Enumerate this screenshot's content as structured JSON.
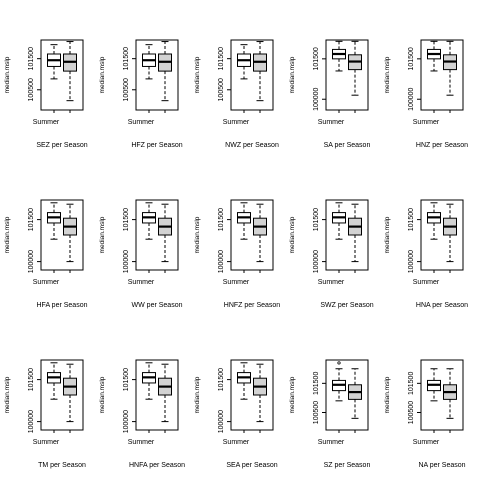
{
  "chart_data": [
    {
      "type": "boxplot",
      "title": "SEZ per Season",
      "xlabel": "SEZ per Season",
      "ylabel": "median.mslp",
      "categories": [
        "Summer",
        ""
      ],
      "yticks": [
        100500,
        101500
      ],
      "ylim": [
        99850,
        102100
      ],
      "boxes": [
        {
          "whisker_low": 100850,
          "q1": 101250,
          "median": 101450,
          "q3": 101650,
          "whisker_high": 101950,
          "outliers": []
        },
        {
          "whisker_low": 100150,
          "q1": 101100,
          "median": 101400,
          "q3": 101650,
          "whisker_high": 102050,
          "outliers": []
        }
      ]
    },
    {
      "type": "boxplot",
      "title": "HFZ per Season",
      "xlabel": "HFZ per Season",
      "ylabel": "median.mslp",
      "categories": [
        "Summer",
        ""
      ],
      "yticks": [
        100500,
        101500
      ],
      "ylim": [
        99850,
        102100
      ],
      "boxes": [
        {
          "whisker_low": 100850,
          "q1": 101250,
          "median": 101450,
          "q3": 101650,
          "whisker_high": 101950,
          "outliers": []
        },
        {
          "whisker_low": 100150,
          "q1": 101100,
          "median": 101400,
          "q3": 101650,
          "whisker_high": 102050,
          "outliers": []
        }
      ]
    },
    {
      "type": "boxplot",
      "title": "NWZ per Season",
      "xlabel": "NWZ per Season",
      "ylabel": "median.mslp",
      "categories": [
        "Summer",
        ""
      ],
      "yticks": [
        100500,
        101500
      ],
      "ylim": [
        99850,
        102100
      ],
      "boxes": [
        {
          "whisker_low": 100850,
          "q1": 101250,
          "median": 101450,
          "q3": 101650,
          "whisker_high": 101950,
          "outliers": []
        },
        {
          "whisker_low": 100150,
          "q1": 101100,
          "median": 101400,
          "q3": 101650,
          "whisker_high": 102050,
          "outliers": []
        }
      ]
    },
    {
      "type": "boxplot",
      "title": "SA per Season",
      "xlabel": "SA per Season",
      "ylabel": "median.mslp",
      "categories": [
        "Summer",
        ""
      ],
      "yticks": [
        100000,
        101500
      ],
      "ylim": [
        99600,
        102200
      ],
      "boxes": [
        {
          "whisker_low": 101050,
          "q1": 101500,
          "median": 101680,
          "q3": 101850,
          "whisker_high": 102150,
          "outliers": []
        },
        {
          "whisker_low": 100150,
          "q1": 101100,
          "median": 101400,
          "q3": 101650,
          "whisker_high": 102150,
          "outliers": []
        }
      ]
    },
    {
      "type": "boxplot",
      "title": "HNZ per Season",
      "xlabel": "HNZ per Season",
      "ylabel": "median.mslp",
      "categories": [
        "Summer",
        ""
      ],
      "yticks": [
        100000,
        101500
      ],
      "ylim": [
        99600,
        102200
      ],
      "boxes": [
        {
          "whisker_low": 101050,
          "q1": 101500,
          "median": 101680,
          "q3": 101850,
          "whisker_high": 102150,
          "outliers": []
        },
        {
          "whisker_low": 100150,
          "q1": 101100,
          "median": 101400,
          "q3": 101650,
          "whisker_high": 102150,
          "outliers": []
        }
      ]
    },
    {
      "type": "boxplot",
      "title": "HFA per Season",
      "xlabel": "HFA per Season",
      "ylabel": "median.mslp",
      "categories": [
        "Summer",
        ""
      ],
      "yticks": [
        100000,
        101500
      ],
      "ylim": [
        99700,
        102200
      ],
      "boxes": [
        {
          "whisker_low": 100800,
          "q1": 101380,
          "median": 101580,
          "q3": 101750,
          "whisker_high": 102100,
          "outliers": []
        },
        {
          "whisker_low": 100000,
          "q1": 100950,
          "median": 101250,
          "q3": 101550,
          "whisker_high": 102050,
          "outliers": []
        }
      ]
    },
    {
      "type": "boxplot",
      "title": "WW per Season",
      "xlabel": "WW per Season",
      "ylabel": "median.mslp",
      "categories": [
        "Summer",
        ""
      ],
      "yticks": [
        100000,
        101500
      ],
      "ylim": [
        99700,
        102200
      ],
      "boxes": [
        {
          "whisker_low": 100800,
          "q1": 101380,
          "median": 101580,
          "q3": 101750,
          "whisker_high": 102100,
          "outliers": []
        },
        {
          "whisker_low": 100000,
          "q1": 100950,
          "median": 101250,
          "q3": 101550,
          "whisker_high": 102050,
          "outliers": []
        }
      ]
    },
    {
      "type": "boxplot",
      "title": "HNFZ per Season",
      "xlabel": "HNFZ per Season",
      "ylabel": "median.mslp",
      "categories": [
        "Summer",
        ""
      ],
      "yticks": [
        100000,
        101500
      ],
      "ylim": [
        99700,
        102200
      ],
      "boxes": [
        {
          "whisker_low": 100800,
          "q1": 101380,
          "median": 101580,
          "q3": 101750,
          "whisker_high": 102100,
          "outliers": []
        },
        {
          "whisker_low": 100000,
          "q1": 100950,
          "median": 101250,
          "q3": 101550,
          "whisker_high": 102050,
          "outliers": []
        }
      ]
    },
    {
      "type": "boxplot",
      "title": "SWZ per Season",
      "xlabel": "SWZ per Season",
      "ylabel": "median.mslp",
      "categories": [
        "Summer",
        ""
      ],
      "yticks": [
        100000,
        101500
      ],
      "ylim": [
        99700,
        102200
      ],
      "boxes": [
        {
          "whisker_low": 100800,
          "q1": 101380,
          "median": 101580,
          "q3": 101750,
          "whisker_high": 102100,
          "outliers": []
        },
        {
          "whisker_low": 100000,
          "q1": 100950,
          "median": 101250,
          "q3": 101550,
          "whisker_high": 102050,
          "outliers": []
        }
      ]
    },
    {
      "type": "boxplot",
      "title": "HNA per Season",
      "xlabel": "HNA per Season",
      "ylabel": "median.mslp",
      "categories": [
        "Summer",
        ""
      ],
      "yticks": [
        100000,
        101500
      ],
      "ylim": [
        99700,
        102200
      ],
      "boxes": [
        {
          "whisker_low": 100800,
          "q1": 101380,
          "median": 101580,
          "q3": 101750,
          "whisker_high": 102100,
          "outliers": []
        },
        {
          "whisker_low": 100000,
          "q1": 100950,
          "median": 101250,
          "q3": 101550,
          "whisker_high": 102050,
          "outliers": []
        }
      ]
    },
    {
      "type": "boxplot",
      "title": "TM per Season",
      "xlabel": "TM per Season",
      "ylabel": "median.mslp",
      "categories": [
        "Summer",
        ""
      ],
      "yticks": [
        100000,
        101500
      ],
      "ylim": [
        99700,
        102200
      ],
      "boxes": [
        {
          "whisker_low": 100800,
          "q1": 101380,
          "median": 101580,
          "q3": 101750,
          "whisker_high": 102100,
          "outliers": []
        },
        {
          "whisker_low": 100000,
          "q1": 100950,
          "median": 101250,
          "q3": 101550,
          "whisker_high": 102050,
          "outliers": []
        }
      ]
    },
    {
      "type": "boxplot",
      "title": "HNFA per Season",
      "xlabel": "HNFA per Season",
      "ylabel": "median.mslp",
      "categories": [
        "Summer",
        ""
      ],
      "yticks": [
        100000,
        101500
      ],
      "ylim": [
        99700,
        102200
      ],
      "boxes": [
        {
          "whisker_low": 100800,
          "q1": 101380,
          "median": 101580,
          "q3": 101750,
          "whisker_high": 102100,
          "outliers": []
        },
        {
          "whisker_low": 100000,
          "q1": 100950,
          "median": 101250,
          "q3": 101550,
          "whisker_high": 102050,
          "outliers": []
        }
      ]
    },
    {
      "type": "boxplot",
      "title": "SEA per Season",
      "xlabel": "SEA per Season",
      "ylabel": "median.mslp",
      "categories": [
        "Summer",
        ""
      ],
      "yticks": [
        100000,
        101500
      ],
      "ylim": [
        99700,
        102200
      ],
      "boxes": [
        {
          "whisker_low": 100800,
          "q1": 101380,
          "median": 101580,
          "q3": 101750,
          "whisker_high": 102100,
          "outliers": []
        },
        {
          "whisker_low": 100000,
          "q1": 100950,
          "median": 101250,
          "q3": 101550,
          "whisker_high": 102050,
          "outliers": []
        }
      ]
    },
    {
      "type": "boxplot",
      "title": "SZ per Season",
      "xlabel": "SZ per Season",
      "ylabel": "median.mslp",
      "categories": [
        "Summer",
        ""
      ],
      "yticks": [
        100500,
        101500
      ],
      "ylim": [
        99900,
        102300
      ],
      "boxes": [
        {
          "whisker_low": 100900,
          "q1": 101250,
          "median": 101450,
          "q3": 101600,
          "whisker_high": 102000,
          "outliers": [
            102200
          ]
        },
        {
          "whisker_low": 100300,
          "q1": 100950,
          "median": 101200,
          "q3": 101450,
          "whisker_high": 102000,
          "outliers": []
        }
      ]
    },
    {
      "type": "boxplot",
      "title": "NA per Season",
      "xlabel": "NA per Season",
      "ylabel": "median.mslp",
      "categories": [
        "Summer",
        ""
      ],
      "yticks": [
        100500,
        101500
      ],
      "ylim": [
        99900,
        102300
      ],
      "boxes": [
        {
          "whisker_low": 100900,
          "q1": 101250,
          "median": 101450,
          "q3": 101600,
          "whisker_high": 102000,
          "outliers": []
        },
        {
          "whisker_low": 100300,
          "q1": 100950,
          "median": 101200,
          "q3": 101450,
          "whisker_high": 102000,
          "outliers": []
        }
      ]
    }
  ]
}
